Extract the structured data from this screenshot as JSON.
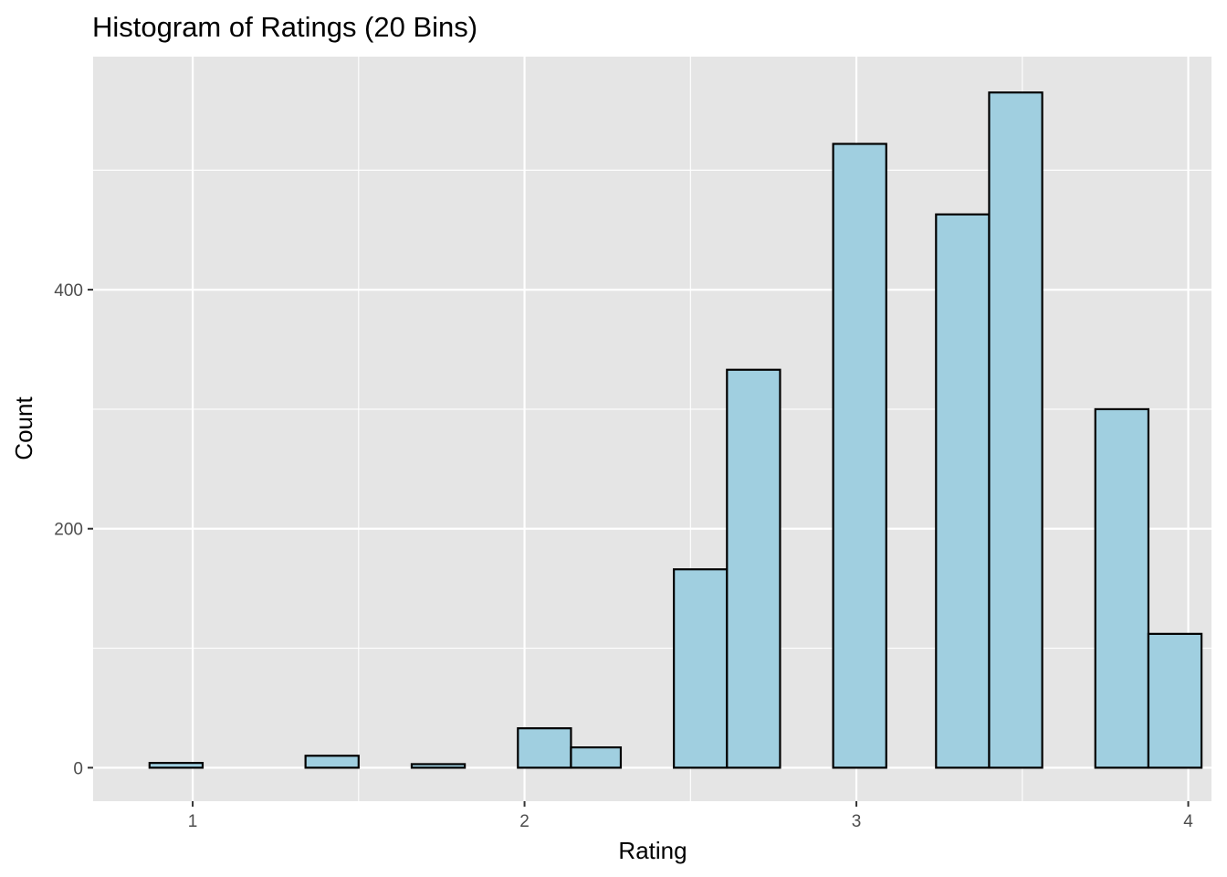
{
  "chart_data": {
    "type": "bar",
    "title": "Histogram of Ratings (20 Bins)",
    "xlabel": "Rating",
    "ylabel": "Count",
    "xlim": [
      0.7,
      4.07
    ],
    "ylim": [
      -28,
      595
    ],
    "x_ticks": [
      1,
      2,
      3,
      4
    ],
    "x_tick_labels": [
      "1",
      "2",
      "3",
      "4"
    ],
    "y_ticks": [
      0,
      200,
      400
    ],
    "y_tick_labels": [
      "0",
      "200",
      "400"
    ],
    "bin_width": 0.158,
    "bins": [
      {
        "start": 0.87,
        "end": 1.03,
        "count": 4
      },
      {
        "start": 1.03,
        "end": 1.19,
        "count": 0
      },
      {
        "start": 1.19,
        "end": 1.34,
        "count": 0
      },
      {
        "start": 1.34,
        "end": 1.5,
        "count": 10
      },
      {
        "start": 1.5,
        "end": 1.66,
        "count": 0
      },
      {
        "start": 1.66,
        "end": 1.82,
        "count": 3
      },
      {
        "start": 1.82,
        "end": 1.98,
        "count": 0
      },
      {
        "start": 1.98,
        "end": 2.14,
        "count": 33
      },
      {
        "start": 2.14,
        "end": 2.29,
        "count": 17
      },
      {
        "start": 2.29,
        "end": 2.45,
        "count": 0
      },
      {
        "start": 2.45,
        "end": 2.61,
        "count": 166
      },
      {
        "start": 2.61,
        "end": 2.77,
        "count": 333
      },
      {
        "start": 2.77,
        "end": 2.93,
        "count": 0
      },
      {
        "start": 2.93,
        "end": 3.09,
        "count": 522
      },
      {
        "start": 3.09,
        "end": 3.24,
        "count": 0
      },
      {
        "start": 3.24,
        "end": 3.4,
        "count": 463
      },
      {
        "start": 3.4,
        "end": 3.56,
        "count": 565
      },
      {
        "start": 3.56,
        "end": 3.72,
        "count": 0
      },
      {
        "start": 3.72,
        "end": 3.88,
        "count": 300
      },
      {
        "start": 3.88,
        "end": 4.04,
        "count": 112
      }
    ],
    "grid": true,
    "legend": "none",
    "colors": {
      "panel_background": "#e5e5e5",
      "grid_line": "#ffffff",
      "bar_fill": "#a0cfe0",
      "bar_outline": "#000000",
      "tick_label": "#4d4d4d",
      "text": "#000000",
      "tick_mark": "#333333"
    }
  }
}
